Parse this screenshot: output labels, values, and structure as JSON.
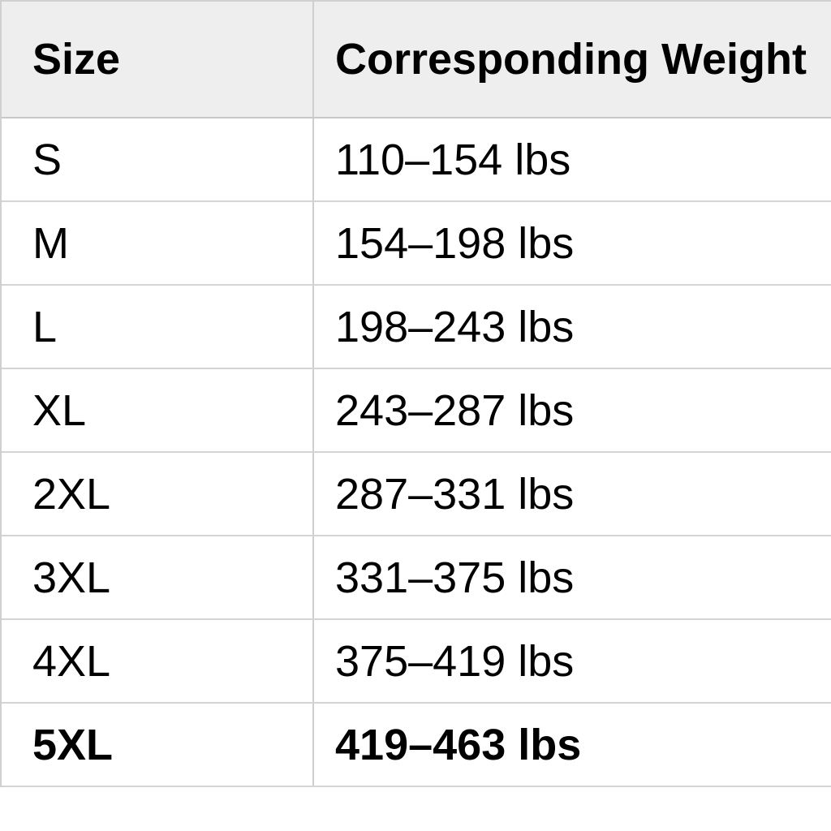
{
  "table": {
    "headers": [
      "Size",
      "Corresponding Weight"
    ],
    "rows": [
      {
        "size": "S",
        "weight": "110–154 lbs"
      },
      {
        "size": "M",
        "weight": "154–198 lbs"
      },
      {
        "size": "L",
        "weight": "198–243 lbs"
      },
      {
        "size": "XL",
        "weight": "243–287 lbs"
      },
      {
        "size": "2XL",
        "weight": "287–331 lbs"
      },
      {
        "size": "3XL",
        "weight": "331–375 lbs"
      },
      {
        "size": "4XL",
        "weight": "375–419 lbs"
      },
      {
        "size": "5XL",
        "weight": "419–463 lbs",
        "bold": true
      }
    ],
    "header_background": "#eeeeee",
    "border_color": "#d0d0d0"
  }
}
